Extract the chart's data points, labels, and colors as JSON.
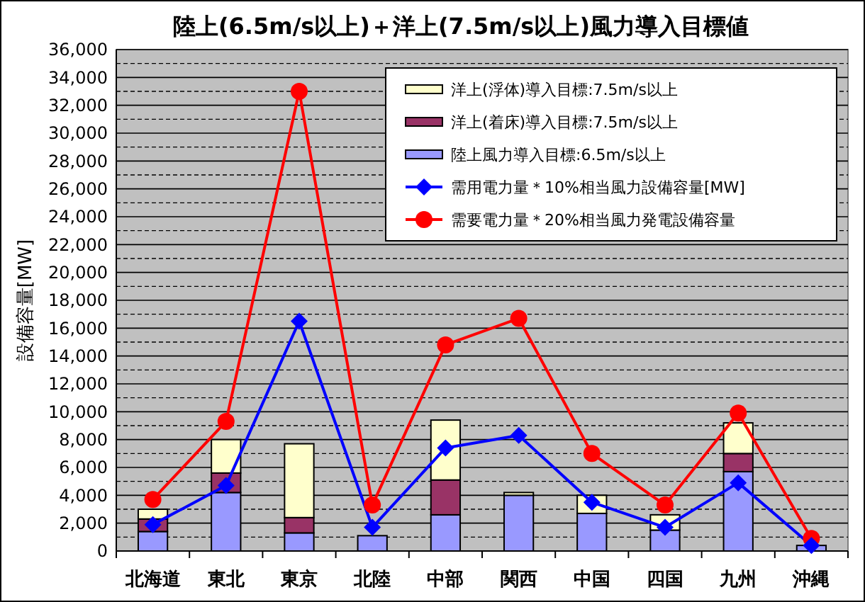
{
  "chart_data": {
    "type": "bar",
    "title": "陸上(6.5m/s以上)＋洋上(7.5m/s以上)風力導入目標値",
    "ylabel": "設備容量[MW]",
    "categories": [
      "北海道",
      "東北",
      "東京",
      "北陸",
      "中部",
      "関西",
      "中国",
      "四国",
      "九州",
      "沖縄"
    ],
    "stacked": true,
    "grid": "y",
    "legend": "top right",
    "ylim": [
      0,
      36000
    ],
    "yticks": [
      {
        "value": 0,
        "label": "0"
      },
      {
        "value": 2000,
        "label": "2,000"
      },
      {
        "value": 4000,
        "label": "4,000"
      },
      {
        "value": 6000,
        "label": "6,000"
      },
      {
        "value": 8000,
        "label": "8,000"
      },
      {
        "value": 10000,
        "label": "10,000"
      },
      {
        "value": 12000,
        "label": "12,000"
      },
      {
        "value": 14000,
        "label": "14,000"
      },
      {
        "value": 16000,
        "label": "16,000"
      },
      {
        "value": 18000,
        "label": "18,000"
      },
      {
        "value": 20000,
        "label": "20,000"
      },
      {
        "value": 22000,
        "label": "22,000"
      },
      {
        "value": 24000,
        "label": "24,000"
      },
      {
        "value": 26000,
        "label": "26,000"
      },
      {
        "value": 28000,
        "label": "28,000"
      },
      {
        "value": 30000,
        "label": "30,000"
      },
      {
        "value": 32000,
        "label": "32,000"
      },
      {
        "value": 34000,
        "label": "34,000"
      },
      {
        "value": 36000,
        "label": "36,000"
      }
    ],
    "series": [
      {
        "name": "陸上風力導入目標:6.5m/s以上",
        "color": "#9999ff",
        "values": [
          1400,
          4200,
          1300,
          1100,
          2600,
          4000,
          2700,
          1500,
          5700,
          400
        ]
      },
      {
        "name": "洋上(着床)導入目標:7.5m/s以上",
        "color": "#993366",
        "values": [
          900,
          1400,
          1100,
          0,
          2500,
          0,
          0,
          0,
          1300,
          0
        ]
      },
      {
        "name": "洋上(浮体)導入目標:7.5m/s以上",
        "color": "#ffffcc",
        "values": [
          700,
          2400,
          5300,
          0,
          4300,
          200,
          1300,
          1100,
          2200,
          0
        ]
      },
      {
        "name": "需用電力量＊10%相当風力設備容量[MW]",
        "type": "line",
        "color": "#0000ff",
        "marker": "diamond",
        "values": [
          1900,
          4700,
          16500,
          1700,
          7400,
          8300,
          3500,
          1700,
          4900,
          400
        ]
      },
      {
        "name": "需要電力量＊20%相当風力発電設備容量",
        "type": "line",
        "color": "#ff0000",
        "marker": "circle",
        "values": [
          3700,
          9300,
          33000,
          3300,
          14800,
          16700,
          7000,
          3300,
          9900,
          900
        ]
      }
    ]
  }
}
